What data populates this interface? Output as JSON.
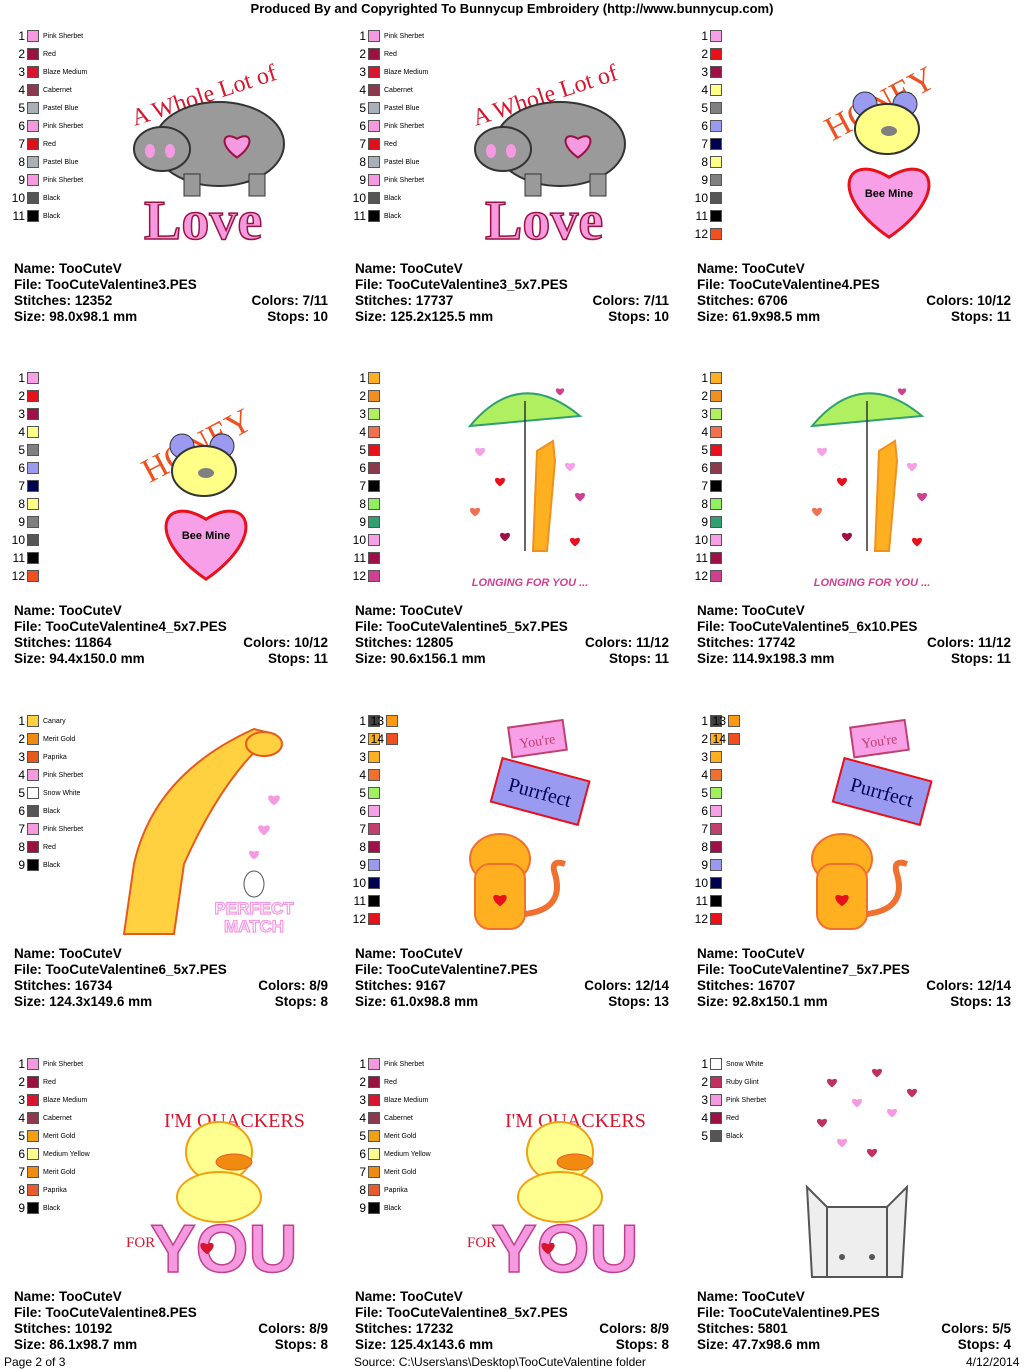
{
  "header": {
    "title": "Produced By and Copyrighted To Bunnycup Embroidery (http://www.bunnycup.com)"
  },
  "labels": {
    "name": "Name:",
    "file": "File:",
    "stitches": "Stitches:",
    "size": "Size:",
    "colors": "Colors:",
    "stops": "Stops:"
  },
  "footer": {
    "page": "Page 2 of 3",
    "source": "Source: C:\\Users\\ans\\Desktop\\TooCuteValentine folder",
    "date": "4/12/2014"
  },
  "cards": [
    {
      "name": "TooCuteV",
      "file": "TooCuteValentine3.PES",
      "stitches": "12352",
      "colors": "7/11",
      "size": "98.0x98.1 mm",
      "stops": "10",
      "art": "hippo",
      "art_text": [
        "A Whole Lot of",
        "Love"
      ],
      "swatches": [
        [
          "1",
          "Pink Sherbet",
          "#f59ae0"
        ],
        [
          "2",
          "Red",
          "#9b1240"
        ],
        [
          "3",
          "Blaze Medium",
          "#d8152e"
        ],
        [
          "4",
          "Cabernet",
          "#8a3a4c"
        ],
        [
          "5",
          "Pastel Blue",
          "#aab0b8"
        ],
        [
          "6",
          "Pink Sherbet",
          "#f59ae0"
        ],
        [
          "7",
          "Red",
          "#e0101a"
        ],
        [
          "8",
          "Pastel Blue",
          "#aab0b8"
        ],
        [
          "9",
          "Pink Sherbet",
          "#f59ae0"
        ],
        [
          "10",
          "Black",
          "#555555"
        ],
        [
          "11",
          "Black",
          "#000000"
        ]
      ]
    },
    {
      "name": "TooCuteV",
      "file": "TooCuteValentine3_5x7.PES",
      "stitches": "17737",
      "colors": "7/11",
      "size": "125.2x125.5 mm",
      "stops": "10",
      "art": "hippo",
      "art_text": [
        "A Whole Lot of",
        "Love"
      ],
      "swatches": [
        [
          "1",
          "Pink Sherbet",
          "#f59ae0"
        ],
        [
          "2",
          "Red",
          "#9b1240"
        ],
        [
          "3",
          "Blaze Medium",
          "#d8152e"
        ],
        [
          "4",
          "Cabernet",
          "#8a3a4c"
        ],
        [
          "5",
          "Pastel Blue",
          "#aab0b8"
        ],
        [
          "6",
          "Pink Sherbet",
          "#f59ae0"
        ],
        [
          "7",
          "Red",
          "#e0101a"
        ],
        [
          "8",
          "Pastel Blue",
          "#aab0b8"
        ],
        [
          "9",
          "Pink Sherbet",
          "#f59ae0"
        ],
        [
          "10",
          "Black",
          "#555555"
        ],
        [
          "11",
          "Black",
          "#000000"
        ]
      ]
    },
    {
      "name": "TooCuteV",
      "file": "TooCuteValentine4.PES",
      "stitches": "6706",
      "colors": "10/12",
      "size": "61.9x98.5 mm",
      "stops": "11",
      "art": "bee",
      "art_text": [
        "HONEY",
        "Bee Mine"
      ],
      "swatches": [
        [
          "1",
          "",
          "#f7a0e8"
        ],
        [
          "2",
          "",
          "#e8101a"
        ],
        [
          "3",
          "",
          "#a01048"
        ],
        [
          "4",
          "",
          "#ffff88"
        ],
        [
          "5",
          "",
          "#808080"
        ],
        [
          "6",
          "",
          "#9a9af0"
        ],
        [
          "7",
          "",
          "#000050"
        ],
        [
          "8",
          "",
          "#ffff88"
        ],
        [
          "9",
          "",
          "#808080"
        ],
        [
          "10",
          "",
          "#555555"
        ],
        [
          "11",
          "",
          "#000000"
        ],
        [
          "12",
          "",
          "#f05020"
        ]
      ]
    },
    {
      "name": "TooCuteV",
      "file": "TooCuteValentine4_5x7.PES",
      "stitches": "11864",
      "colors": "10/12",
      "size": "94.4x150.0 mm",
      "stops": "11",
      "art": "bee",
      "art_text": [
        "HONEY",
        "Bee Mine"
      ],
      "swatches": [
        [
          "1",
          "",
          "#f7a0e8"
        ],
        [
          "2",
          "",
          "#e8101a"
        ],
        [
          "3",
          "",
          "#a01048"
        ],
        [
          "4",
          "",
          "#ffff88"
        ],
        [
          "5",
          "",
          "#808080"
        ],
        [
          "6",
          "",
          "#9a9af0"
        ],
        [
          "7",
          "",
          "#000050"
        ],
        [
          "8",
          "",
          "#ffff88"
        ],
        [
          "9",
          "",
          "#808080"
        ],
        [
          "10",
          "",
          "#555555"
        ],
        [
          "11",
          "",
          "#000000"
        ],
        [
          "12",
          "",
          "#f05020"
        ]
      ]
    },
    {
      "name": "TooCuteV",
      "file": "TooCuteValentine5_5x7.PES",
      "stitches": "12805",
      "colors": "11/12",
      "size": "90.6x156.1 mm",
      "stops": "11",
      "art": "umbrella",
      "art_text": [
        "LONGING FOR YOU ..."
      ],
      "swatches": [
        [
          "1",
          "",
          "#ffb020"
        ],
        [
          "2",
          "",
          "#f09020"
        ],
        [
          "3",
          "",
          "#b0f060"
        ],
        [
          "4",
          "",
          "#f07050"
        ],
        [
          "5",
          "",
          "#e8101a"
        ],
        [
          "6",
          "",
          "#8a3a4c"
        ],
        [
          "7",
          "",
          "#000000"
        ],
        [
          "8",
          "",
          "#90f060"
        ],
        [
          "9",
          "",
          "#30a070"
        ],
        [
          "10",
          "",
          "#f7a0e8"
        ],
        [
          "11",
          "",
          "#a01048"
        ],
        [
          "12",
          "",
          "#d04090"
        ]
      ]
    },
    {
      "name": "TooCuteV",
      "file": "TooCuteValentine5_6x10.PES",
      "stitches": "17742",
      "colors": "11/12",
      "size": "114.9x198.3 mm",
      "stops": "11",
      "art": "umbrella",
      "art_text": [
        "LONGING FOR YOU ..."
      ],
      "swatches": [
        [
          "1",
          "",
          "#ffb020"
        ],
        [
          "2",
          "",
          "#f09020"
        ],
        [
          "3",
          "",
          "#b0f060"
        ],
        [
          "4",
          "",
          "#f07050"
        ],
        [
          "5",
          "",
          "#e8101a"
        ],
        [
          "6",
          "",
          "#8a3a4c"
        ],
        [
          "7",
          "",
          "#000000"
        ],
        [
          "8",
          "",
          "#90f060"
        ],
        [
          "9",
          "",
          "#30a070"
        ],
        [
          "10",
          "",
          "#f7a0e8"
        ],
        [
          "11",
          "",
          "#a01048"
        ],
        [
          "12",
          "",
          "#d04090"
        ]
      ]
    },
    {
      "name": "TooCuteV",
      "file": "TooCuteValentine6_5x7.PES",
      "stitches": "16734",
      "colors": "8/9",
      "size": "124.3x149.6 mm",
      "stops": "8",
      "art": "giraffe",
      "art_text": [
        "PERFECT",
        "MATCH"
      ],
      "swatches": [
        [
          "1",
          "Canary",
          "#ffd040"
        ],
        [
          "2",
          "Merit Gold",
          "#f08a10"
        ],
        [
          "3",
          "Paprika",
          "#e85a1c"
        ],
        [
          "4",
          "Pink Sherbet",
          "#f59ae0"
        ],
        [
          "5",
          "Snow White",
          "#ffffff"
        ],
        [
          "6",
          "Black",
          "#555555"
        ],
        [
          "7",
          "Pink Sherbet",
          "#f59ae0"
        ],
        [
          "8",
          "Red",
          "#9b1240"
        ],
        [
          "9",
          "Black",
          "#000000"
        ]
      ]
    },
    {
      "name": "TooCuteV",
      "file": "TooCuteValentine7.PES",
      "stitches": "9167",
      "colors": "12/14",
      "size": "61.0x98.8 mm",
      "stops": "13",
      "art": "cat",
      "art_text": [
        "You're",
        "Purrfect"
      ],
      "swatches": [
        [
          "1",
          "",
          "#404040"
        ],
        [
          "2",
          "",
          "#ffb020"
        ],
        [
          "3",
          "",
          "#ffb020"
        ],
        [
          "4",
          "",
          "#f07030"
        ],
        [
          "5",
          "",
          "#a0f060"
        ],
        [
          "6",
          "",
          "#f7a0e8"
        ],
        [
          "7",
          "",
          "#c04070"
        ],
        [
          "8",
          "",
          "#a01048"
        ],
        [
          "9",
          "",
          "#9a9af0"
        ],
        [
          "10",
          "",
          "#000050"
        ],
        [
          "11",
          "",
          "#000000"
        ],
        [
          "12",
          "",
          "#e8101a"
        ],
        [
          "13",
          "",
          "#ff9a10"
        ],
        [
          "14",
          "",
          "#f05020"
        ]
      ]
    },
    {
      "name": "TooCuteV",
      "file": "TooCuteValentine7_5x7.PES",
      "stitches": "16707",
      "colors": "12/14",
      "size": "92.8x150.1 mm",
      "stops": "13",
      "art": "cat",
      "art_text": [
        "You're",
        "Purrfect"
      ],
      "swatches": [
        [
          "1",
          "",
          "#404040"
        ],
        [
          "2",
          "",
          "#ffb020"
        ],
        [
          "3",
          "",
          "#ffb020"
        ],
        [
          "4",
          "",
          "#f07030"
        ],
        [
          "5",
          "",
          "#a0f060"
        ],
        [
          "6",
          "",
          "#f7a0e8"
        ],
        [
          "7",
          "",
          "#c04070"
        ],
        [
          "8",
          "",
          "#a01048"
        ],
        [
          "9",
          "",
          "#9a9af0"
        ],
        [
          "10",
          "",
          "#000050"
        ],
        [
          "11",
          "",
          "#000000"
        ],
        [
          "12",
          "",
          "#e8101a"
        ],
        [
          "13",
          "",
          "#ff9a10"
        ],
        [
          "14",
          "",
          "#f05020"
        ]
      ]
    },
    {
      "name": "TooCuteV",
      "file": "TooCuteValentine8.PES",
      "stitches": "10192",
      "colors": "8/9",
      "size": "86.1x98.7 mm",
      "stops": "8",
      "art": "duck",
      "art_text": [
        "I'M QUACKERS",
        "FOR",
        "YOU"
      ],
      "swatches": [
        [
          "1",
          "Pink Sherbet",
          "#f59ae0"
        ],
        [
          "2",
          "Red",
          "#9b1240"
        ],
        [
          "3",
          "Blaze Medium",
          "#d8152e"
        ],
        [
          "4",
          "Cabernet",
          "#8a3a4c"
        ],
        [
          "5",
          "Merit Gold",
          "#f0a010"
        ],
        [
          "6",
          "Medium Yellow",
          "#ffff90"
        ],
        [
          "7",
          "Merit Gold",
          "#f08a10"
        ],
        [
          "8",
          "Paprika",
          "#e85a30"
        ],
        [
          "9",
          "Black",
          "#000000"
        ]
      ]
    },
    {
      "name": "TooCuteV",
      "file": "TooCuteValentine8_5x7.PES",
      "stitches": "17232",
      "colors": "8/9",
      "size": "125.4x143.6 mm",
      "stops": "8",
      "art": "duck",
      "art_text": [
        "I'M QUACKERS",
        "FOR",
        "YOU"
      ],
      "swatches": [
        [
          "1",
          "Pink Sherbet",
          "#f59ae0"
        ],
        [
          "2",
          "Red",
          "#9b1240"
        ],
        [
          "3",
          "Blaze Medium",
          "#d8152e"
        ],
        [
          "4",
          "Cabernet",
          "#8a3a4c"
        ],
        [
          "5",
          "Merit Gold",
          "#f0a010"
        ],
        [
          "6",
          "Medium Yellow",
          "#ffff90"
        ],
        [
          "7",
          "Merit Gold",
          "#f08a10"
        ],
        [
          "8",
          "Paprika",
          "#e85a30"
        ],
        [
          "9",
          "Black",
          "#000000"
        ]
      ]
    },
    {
      "name": "TooCuteV",
      "file": "TooCuteValentine9.PES",
      "stitches": "5801",
      "colors": "5/5",
      "size": "47.7x98.6 mm",
      "stops": "4",
      "art": "bunnies",
      "art_text": [],
      "swatches": [
        [
          "1",
          "Snow White",
          "#ffffff"
        ],
        [
          "2",
          "Ruby Glint",
          "#c03060"
        ],
        [
          "3",
          "Pink Sherbet",
          "#f59ae0"
        ],
        [
          "4",
          "Red",
          "#9b1240"
        ],
        [
          "5",
          "Black",
          "#555555"
        ]
      ]
    }
  ]
}
